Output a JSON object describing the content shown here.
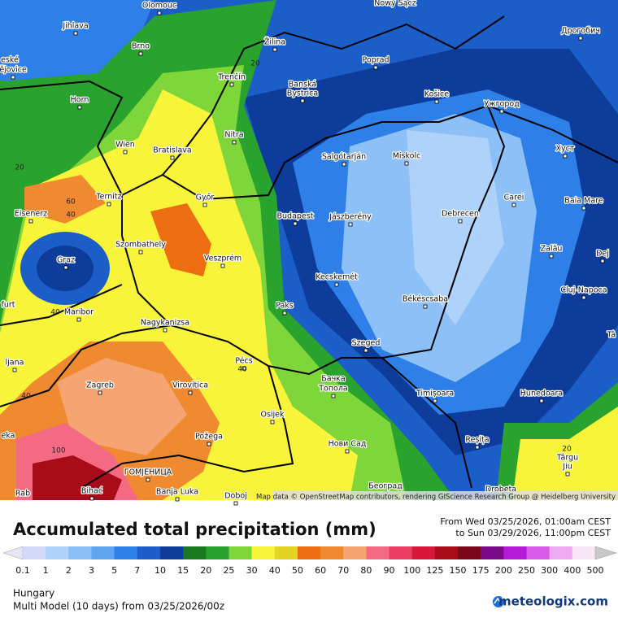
{
  "map": {
    "attribution": "Map data © OpenStreetMap contributors, rendering GIScience Research Group @ Heidelberg University",
    "places": [
      {
        "label": "Olomouc"
      },
      {
        "label": "Jihlava"
      },
      {
        "label": "Brno"
      },
      {
        "label": "Nowy Sącz"
      },
      {
        "label": "Žilina"
      },
      {
        "label": "Poprad"
      },
      {
        "label": "Дрогобич"
      },
      {
        "label": "eské"
      },
      {
        "label": "ějovice"
      },
      {
        "label": "Trenčín"
      },
      {
        "label": "Banská"
      },
      {
        "label": "Bystrica"
      },
      {
        "label": "Horn"
      },
      {
        "label": "Košice"
      },
      {
        "label": "Ужгород"
      },
      {
        "label": "Nitra"
      },
      {
        "label": "Wien"
      },
      {
        "label": "Bratislava"
      },
      {
        "label": "Salgótarján"
      },
      {
        "label": "Miskolc"
      },
      {
        "label": "Хуст"
      },
      {
        "label": "Ternitz"
      },
      {
        "label": "Győr"
      },
      {
        "label": "Carei"
      },
      {
        "label": "Baia Mare"
      },
      {
        "label": "Eisenerz"
      },
      {
        "label": "Budapest"
      },
      {
        "label": "Jászberény"
      },
      {
        "label": "Debrecen"
      },
      {
        "label": "Szombathely"
      },
      {
        "label": "Veszprém"
      },
      {
        "label": "Zalău"
      },
      {
        "label": "Dej"
      },
      {
        "label": "Graz"
      },
      {
        "label": "Kecskemét"
      },
      {
        "label": "Cluj-Napoca"
      },
      {
        "label": "Békéscsaba"
      },
      {
        "label": "furt"
      },
      {
        "label": "Paks"
      },
      {
        "label": "Maribor"
      },
      {
        "label": "Nagykanizsa"
      },
      {
        "label": "Tâ"
      },
      {
        "label": "Szeged"
      },
      {
        "label": "ljana"
      },
      {
        "label": "Pécs"
      },
      {
        "label": "Бачка"
      },
      {
        "label": "Топола"
      },
      {
        "label": "Zagreb"
      },
      {
        "label": "Virovitica"
      },
      {
        "label": "Timișoara"
      },
      {
        "label": "Hunedoara"
      },
      {
        "label": "Osijek"
      },
      {
        "label": "eka"
      },
      {
        "label": "Požega"
      },
      {
        "label": "Reșița"
      },
      {
        "label": "Нови Сад"
      },
      {
        "label": "Târgu"
      },
      {
        "label": "Jiu"
      },
      {
        "label": "ГОМЈЕНИЦА"
      },
      {
        "label": "Banja Luka"
      },
      {
        "label": "Bihać"
      },
      {
        "label": "Rab"
      },
      {
        "label": "Doboj"
      },
      {
        "label": "Београд"
      },
      {
        "label": "Drobeta"
      }
    ],
    "contour_labels": [
      "20",
      "20",
      "60",
      "40",
      "40",
      "40",
      "40",
      "20",
      "100"
    ]
  },
  "header": {
    "title": "Accumulated total precipitation (mm)",
    "period_from": "From Wed 03/25/2026, 01:00am CEST",
    "period_to": "to Sun 03/29/2026, 11:00pm CEST"
  },
  "legend": {
    "colors": [
      "#e6e6f4",
      "#d4d8f8",
      "#aed2fa",
      "#8cc0f6",
      "#5ea4f0",
      "#2e80e8",
      "#1c5ec8",
      "#0e3c9a",
      "#1a7a22",
      "#2aa22e",
      "#7ed63a",
      "#f8f43a",
      "#e4d424",
      "#ec6e10",
      "#f08a30",
      "#f6a472",
      "#f46a82",
      "#ec3c62",
      "#d8183a",
      "#a80c18",
      "#7a0818",
      "#7a0a8a",
      "#b41ad8",
      "#d85ae8",
      "#eeaaf2",
      "#f8e6f8",
      "#c8c8c8"
    ],
    "ticks": [
      0.1,
      1,
      2,
      3,
      5,
      7,
      10,
      15,
      20,
      25,
      30,
      40,
      50,
      60,
      70,
      80,
      90,
      100,
      125,
      150,
      175,
      200,
      250,
      300,
      400,
      500
    ]
  },
  "footer": {
    "region": "Hungary",
    "model": "Multi Model (10 days)  from  03/25/2026/00z",
    "brand": "meteologix.com"
  }
}
